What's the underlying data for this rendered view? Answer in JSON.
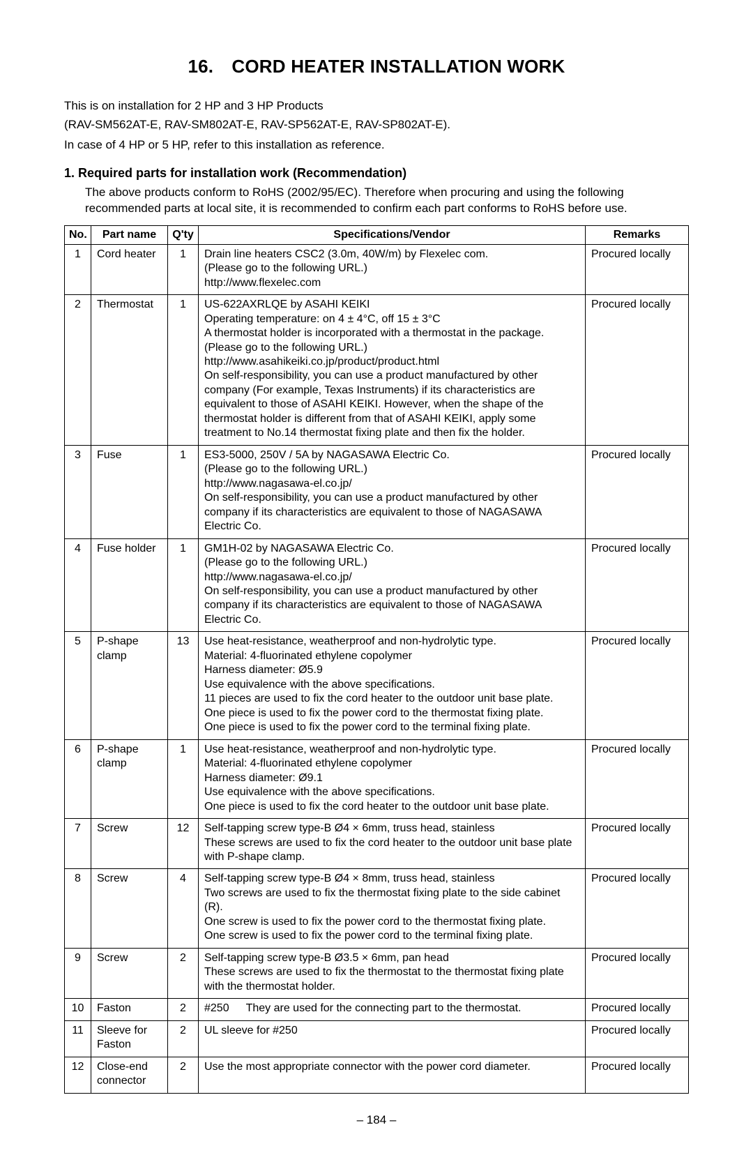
{
  "title": "16. CORD HEATER INSTALLATION WORK",
  "intro": {
    "line1": "This is on installation for 2 HP and 3 HP Products",
    "line2": "(RAV-SM562AT-E, RAV-SM802AT-E, RAV-SP562AT-E, RAV-SP802AT-E).",
    "line3": "In case of 4 HP or 5 HP, refer to this installation as reference."
  },
  "section": {
    "heading": "1.  Required parts for installation work (Recommendation)",
    "text": "The above products conform to RoHS (2002/95/EC). Therefore when procuring and using the following recommended parts at local site, it is recommended to confirm each part conforms to RoHS before use."
  },
  "table": {
    "headers": {
      "no": "No.",
      "part": "Part name",
      "qty": "Q'ty",
      "spec": "Specifications/Vendor",
      "remarks": "Remarks"
    },
    "rows": [
      {
        "no": "1",
        "part": "Cord heater",
        "qty": "1",
        "spec": [
          "Drain line heaters CSC2 (3.0m, 40W/m) by Flexelec com.",
          "(Please go to the following URL.)",
          "http://www.flexelec.com"
        ],
        "remarks": "Procured locally"
      },
      {
        "no": "2",
        "part": "Thermostat",
        "qty": "1",
        "spec": [
          "US-622AXRLQE by ASAHI KEIKI",
          "Operating temperature: on 4 ± 4°C, off 15 ± 3°C",
          "A thermostat holder is incorporated with a thermostat in the package.",
          "(Please go to the following URL.)",
          "http://www.asahikeiki.co.jp/product/product.html",
          "On self-responsibility, you can use a product manufactured by other company (For example, Texas Instruments) if its characteristics are equivalent to those of ASAHI KEIKI. However, when the shape of the thermostat holder is different from that of ASAHI KEIKI, apply some treatment to No.14 thermostat fixing plate and then fix the holder."
        ],
        "remarks": "Procured locally"
      },
      {
        "no": "3",
        "part": "Fuse",
        "qty": "1",
        "spec": [
          "ES3-5000, 250V / 5A by NAGASAWA Electric Co.",
          "(Please go to the following URL.)",
          "http://www.nagasawa-el.co.jp/",
          "On self-responsibility, you can use a product manufactured by other company if its characteristics are equivalent to those of NAGASAWA Electric Co."
        ],
        "remarks": "Procured locally"
      },
      {
        "no": "4",
        "part": "Fuse holder",
        "qty": "1",
        "spec": [
          "GM1H-02 by NAGASAWA Electric Co.",
          "(Please go to the following URL.)",
          "http://www.nagasawa-el.co.jp/",
          "On self-responsibility, you can use a product manufactured by other company if its characteristics are equivalent to those of NAGASAWA Electric Co."
        ],
        "remarks": "Procured locally"
      },
      {
        "no": "5",
        "part": "P-shape clamp",
        "qty": "13",
        "spec": [
          "Use heat-resistance, weatherproof and non-hydrolytic type.",
          "Material: 4-fluorinated ethylene copolymer",
          "Harness diameter: Ø5.9",
          "Use equivalence with the above specifications.",
          "11 pieces are used to fix the cord heater to the outdoor unit base plate.",
          "One piece is used to fix the power cord to the thermostat fixing plate.",
          "One piece is used to fix the power cord to the terminal fixing plate."
        ],
        "remarks": "Procured locally"
      },
      {
        "no": "6",
        "part": "P-shape clamp",
        "qty": "1",
        "spec": [
          "Use heat-resistance, weatherproof and non-hydrolytic type.",
          "Material: 4-fluorinated ethylene copolymer",
          "Harness diameter: Ø9.1",
          "Use equivalence with the above specifications.",
          "One piece is used to fix the cord heater to the outdoor unit base plate."
        ],
        "remarks": "Procured locally"
      },
      {
        "no": "7",
        "part": "Screw",
        "qty": "12",
        "spec": [
          "Self-tapping screw type-B Ø4 × 6mm, truss head, stainless",
          "These screws are used to fix the cord heater to the outdoor unit base plate with P-shape clamp."
        ],
        "remarks": "Procured locally"
      },
      {
        "no": "8",
        "part": "Screw",
        "qty": "4",
        "spec": [
          "Self-tapping screw type-B Ø4 × 8mm, truss head, stainless",
          "Two screws are used to fix the thermostat fixing plate to the side cabinet (R).",
          "One screw is used to fix the power cord to the thermostat fixing plate.",
          "One screw is used to fix the power cord to the terminal fixing plate."
        ],
        "remarks": "Procured locally"
      },
      {
        "no": "9",
        "part": "Screw",
        "qty": "2",
        "spec": [
          "Self-tapping screw type-B Ø3.5 × 6mm, pan head",
          "These screws are used to fix the thermostat to the thermostat fixing plate with the thermostat holder."
        ],
        "remarks": "Procured locally"
      },
      {
        "no": "10",
        "part": "Faston",
        "qty": "2",
        "spec": [
          "#250  They are used for the connecting part to the thermostat."
        ],
        "remarks": "Procured locally"
      },
      {
        "no": "11",
        "part": "Sleeve for Faston",
        "qty": "2",
        "spec": [
          "UL sleeve for #250"
        ],
        "remarks": "Procured locally"
      },
      {
        "no": "12",
        "part": "Close-end connector",
        "qty": "2",
        "spec": [
          "Use the most appropriate connector with the power cord diameter."
        ],
        "remarks": "Procured locally"
      }
    ]
  },
  "page_number": "– 184 –"
}
